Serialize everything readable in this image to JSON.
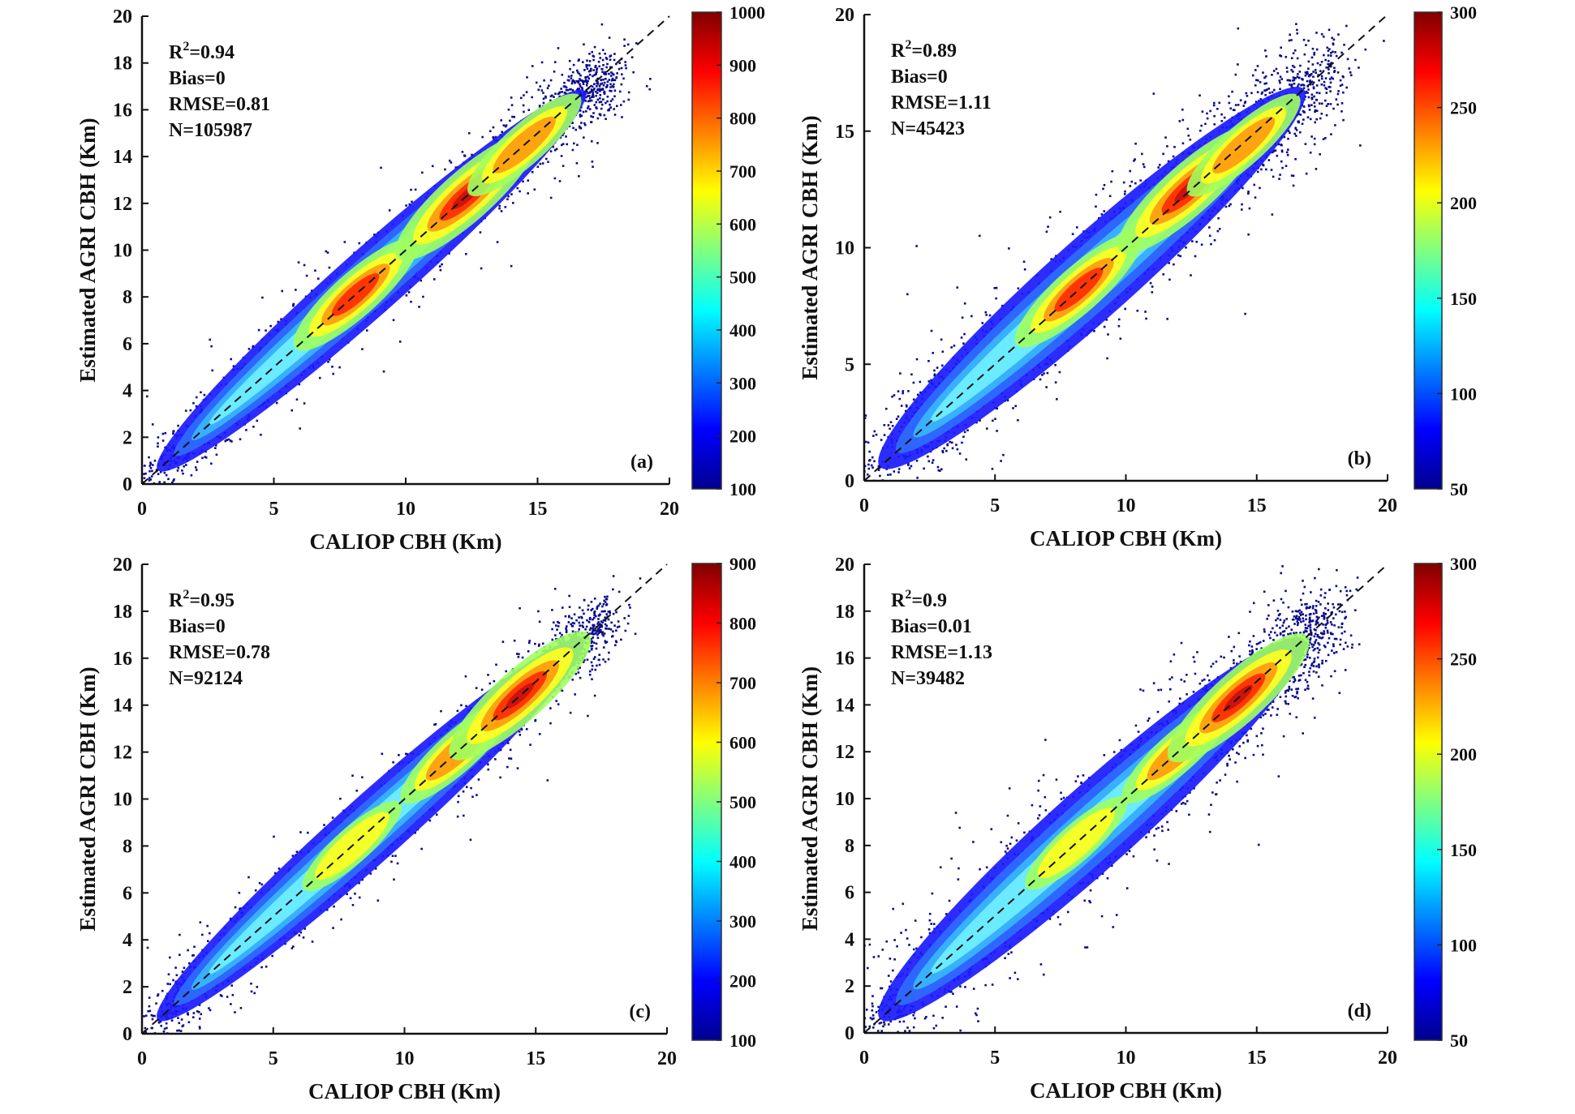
{
  "figure": {
    "colormap": [
      "#00008f",
      "#0000ff",
      "#0080ff",
      "#00ffff",
      "#80ff80",
      "#ffff00",
      "#ff8000",
      "#ff0000",
      "#800000"
    ],
    "dot_color": "#0a0a8c",
    "line_color": "#111111"
  },
  "chart_data": [
    {
      "type": "scatter",
      "panel_tag": "(a)",
      "title": "",
      "xlabel": "CALIOP CBH (Km)",
      "ylabel": "Estimated AGRI CBH (Km)",
      "xlim": [
        0,
        20
      ],
      "ylim": [
        0,
        20
      ],
      "xticks": [
        0,
        5,
        10,
        15,
        20
      ],
      "yticks": [
        0,
        2,
        4,
        6,
        8,
        10,
        12,
        14,
        16,
        18,
        20
      ],
      "stats": {
        "r2_prefix": "R",
        "r2_sup": "2",
        "r2": "=0.94",
        "bias": "Bias=0",
        "rmse": "RMSE=0.81",
        "n": "N=105987"
      },
      "reference_line": {
        "type": "1:1 dashed",
        "from": [
          0,
          0
        ],
        "to": [
          20,
          20
        ]
      },
      "density_core": [
        {
          "x": 8.1,
          "y": 8.1,
          "density": 0.75
        },
        {
          "x": 12.3,
          "y": 12.3,
          "density": 1.0
        },
        {
          "x": 14.5,
          "y": 14.5,
          "density": 0.6
        }
      ],
      "colorbar": {
        "min": 100,
        "max": 1000,
        "ticks": [
          100,
          200,
          300,
          400,
          500,
          600,
          700,
          800,
          900,
          1000
        ]
      }
    },
    {
      "type": "scatter",
      "panel_tag": "(b)",
      "title": "",
      "xlabel": "CALIOP CBH (Km)",
      "ylabel": "Estimated AGRI CBH (Km)",
      "xlim": [
        0,
        20
      ],
      "ylim": [
        0,
        20
      ],
      "xticks": [
        0,
        5,
        10,
        15,
        20
      ],
      "yticks": [
        0,
        5,
        10,
        15,
        20
      ],
      "stats": {
        "r2_prefix": "R",
        "r2_sup": "2",
        "r2": "=0.89",
        "bias": "Bias=0",
        "rmse": "RMSE=1.11",
        "n": "N=45423"
      },
      "reference_line": {
        "type": "1:1 dashed",
        "from": [
          0,
          0
        ],
        "to": [
          20,
          20
        ]
      },
      "density_core": [
        {
          "x": 8.2,
          "y": 8.2,
          "density": 0.8
        },
        {
          "x": 12.4,
          "y": 12.5,
          "density": 1.0
        },
        {
          "x": 14.5,
          "y": 14.4,
          "density": 0.6
        }
      ],
      "colorbar": {
        "min": 50,
        "max": 300,
        "ticks": [
          50,
          100,
          150,
          200,
          250,
          300
        ]
      }
    },
    {
      "type": "scatter",
      "panel_tag": "(c)",
      "title": "",
      "xlabel": "CALIOP CBH (Km)",
      "ylabel": "Estimated AGRI CBH (Km)",
      "xlim": [
        0,
        20
      ],
      "ylim": [
        0,
        20
      ],
      "xticks": [
        0,
        5,
        10,
        15,
        20
      ],
      "yticks": [
        0,
        2,
        4,
        6,
        8,
        10,
        12,
        14,
        16,
        18,
        20
      ],
      "stats": {
        "r2_prefix": "R",
        "r2_sup": "2",
        "r2": "=0.95",
        "bias": "Bias=0",
        "rmse": "RMSE=0.78",
        "n": "N=92124"
      },
      "reference_line": {
        "type": "1:1 dashed",
        "from": [
          0,
          0
        ],
        "to": [
          20,
          20
        ]
      },
      "density_core": [
        {
          "x": 8.0,
          "y": 8.0,
          "density": 0.4
        },
        {
          "x": 12.0,
          "y": 12.0,
          "density": 0.6
        },
        {
          "x": 14.4,
          "y": 14.4,
          "density": 1.0
        }
      ],
      "colorbar": {
        "min": 100,
        "max": 900,
        "ticks": [
          100,
          200,
          300,
          400,
          500,
          600,
          700,
          800,
          900
        ]
      }
    },
    {
      "type": "scatter",
      "panel_tag": "(d)",
      "title": "",
      "xlabel": "CALIOP CBH (Km)",
      "ylabel": "Estimated AGRI CBH (Km)",
      "xlim": [
        0,
        20
      ],
      "ylim": [
        0,
        20
      ],
      "xticks": [
        0,
        5,
        10,
        15,
        20
      ],
      "yticks": [
        0,
        2,
        4,
        6,
        8,
        10,
        12,
        14,
        16,
        18,
        20
      ],
      "stats": {
        "r2_prefix": "R",
        "r2_sup": "2",
        "r2": "=0.9",
        "bias": "Bias=0.01",
        "rmse": "RMSE=1.13",
        "n": "N=39482"
      },
      "reference_line": {
        "type": "1:1 dashed",
        "from": [
          0,
          0
        ],
        "to": [
          20,
          20
        ]
      },
      "density_core": [
        {
          "x": 8.1,
          "y": 8.1,
          "density": 0.45
        },
        {
          "x": 12.0,
          "y": 12.0,
          "density": 0.6
        },
        {
          "x": 14.3,
          "y": 14.3,
          "density": 1.0
        }
      ],
      "colorbar": {
        "min": 50,
        "max": 300,
        "ticks": [
          50,
          100,
          150,
          200,
          250,
          300
        ]
      }
    }
  ]
}
